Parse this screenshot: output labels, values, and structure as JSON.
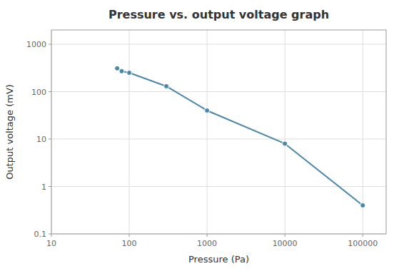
{
  "chart_data": {
    "type": "line",
    "title": "Pressure vs. output voltage graph",
    "x_label": "Pressure  (Pa)",
    "y_label": "Output voltage  (mV)",
    "x": [
      70,
      80,
      100,
      300,
      1000,
      10000,
      100000
    ],
    "values": [
      310,
      270,
      250,
      130,
      40,
      8,
      0.4
    ],
    "color": "#4a86a8",
    "marker": "circle",
    "line_style": "solid",
    "log": true,
    "grid": true,
    "xlim": [
      10,
      200000
    ],
    "ylim": [
      0.1,
      2000
    ],
    "xticks": [
      10,
      100,
      1000,
      10000,
      100000
    ],
    "yticks": [
      0.1,
      1,
      10,
      100,
      1000
    ]
  }
}
